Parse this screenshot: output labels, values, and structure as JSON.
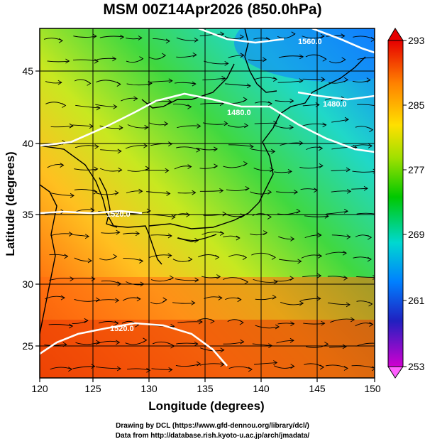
{
  "title": "MSM 00Z14Apr2026 (850.0hPa)",
  "axes": {
    "xlabel": "Longitude (degrees)",
    "ylabel": "Latitude  (degrees)",
    "x_ticks": [
      "120",
      "125",
      "130",
      "135",
      "140",
      "145",
      "150"
    ],
    "y_ticks": [
      "25",
      "30",
      "35",
      "40",
      "45"
    ]
  },
  "colorbar": {
    "labels": [
      "293",
      "285",
      "277",
      "269",
      "261",
      "253"
    ],
    "colors": [
      "#e60000",
      "#ff8000",
      "#ffe000",
      "#a0e000",
      "#00c800",
      "#00d8d0",
      "#0080ff",
      "#2020c0",
      "#c000c0",
      "#ff60ff"
    ]
  },
  "contour_labels": [
    "1520.0",
    "1520.0",
    "1480.0",
    "1480.0",
    "1560.0"
  ],
  "credits": {
    "line1": "Drawing by DCL (https://www.gfd-dennou.org/library/dcl/)",
    "line2": "Data from http://database.rish.kyoto-u.ac.jp/arch/jmadata/"
  }
}
